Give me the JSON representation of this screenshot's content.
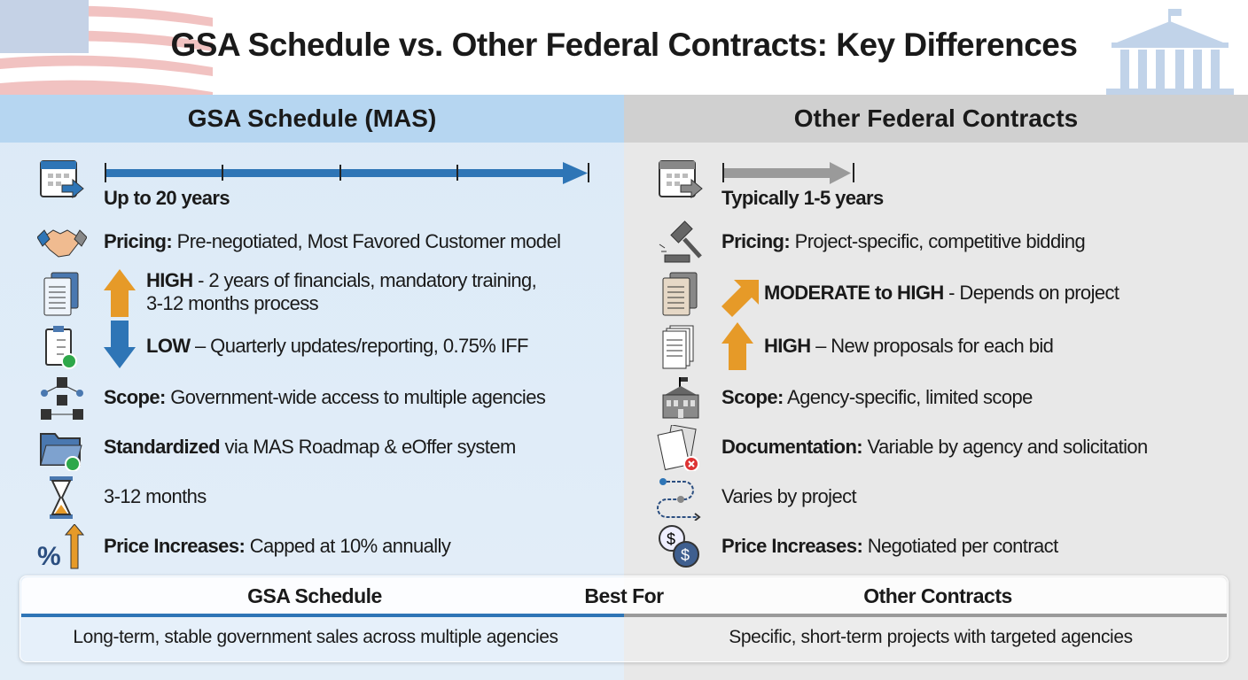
{
  "title": "GSA Schedule vs. Other Federal Contracts: Key Differences",
  "left": {
    "header": "GSA Schedule (MAS)",
    "rows": [
      {
        "icon": "calendar-arrow-icon",
        "bold": "Up to 20 years",
        "text": ""
      },
      {
        "icon": "handshake-icon",
        "bold": "Pricing:",
        "text": " Pre-negotiated, Most Favored Customer model"
      },
      {
        "icon": "documents-icon",
        "indicator": "arrow-up-icon",
        "bold": "HIGH",
        "text": " - 2 years of financials, mandatory training,",
        "text2": "3-12 months process"
      },
      {
        "icon": "clipboard-check-icon",
        "indicator": "arrow-down-icon",
        "bold": "LOW",
        "text": " – Quarterly updates/reporting, 0.75% IFF"
      },
      {
        "icon": "agency-network-icon",
        "bold": "Scope:",
        "text": " Government-wide access to multiple agencies"
      },
      {
        "icon": "folder-check-icon",
        "bold": "Standardized",
        "text": " via MAS Roadmap & eOffer system"
      },
      {
        "icon": "hourglass-icon",
        "bold": "",
        "text": "3-12 months"
      },
      {
        "icon": "percent-up-icon",
        "bold": "Price Increases:",
        "text": " Capped at 10% annually"
      }
    ]
  },
  "right": {
    "header": "Other Federal Contracts",
    "rows": [
      {
        "icon": "calendar-arrow-icon",
        "bold": "Typically 1-5 years",
        "text": ""
      },
      {
        "icon": "gavel-icon",
        "bold": "Pricing:",
        "text": " Project-specific, competitive bidding"
      },
      {
        "icon": "documents-icon",
        "indicator": "arrow-up-right-icon",
        "bold": "MODERATE to HIGH",
        "text": " - Depends on project"
      },
      {
        "icon": "stacked-documents-icon",
        "indicator": "arrow-up-icon",
        "bold": "HIGH",
        "text": " – New proposals for each bid"
      },
      {
        "icon": "building-icon",
        "bold": "Scope:",
        "text": " Agency-specific, limited scope"
      },
      {
        "icon": "documents-x-icon",
        "bold": "Documentation:",
        "text": " Variable by agency and solicitation"
      },
      {
        "icon": "path-icon",
        "bold": "",
        "text": "Varies by project"
      },
      {
        "icon": "dollar-chat-icon",
        "bold": "Price Increases:",
        "text": " Negotiated per contract"
      }
    ]
  },
  "best_for": {
    "label": "Best For",
    "left_title": "GSA Schedule",
    "left_text": "Long-term, stable government sales across multiple agencies",
    "right_title": "Other Contracts",
    "right_text": "Specific, short-term projects with targeted agencies"
  },
  "colors": {
    "blue": "#2e75b6",
    "orange": "#e69a28",
    "grey": "#9a9a9a",
    "left_bg": "#dceaf7",
    "right_bg": "#e8e8e8"
  }
}
